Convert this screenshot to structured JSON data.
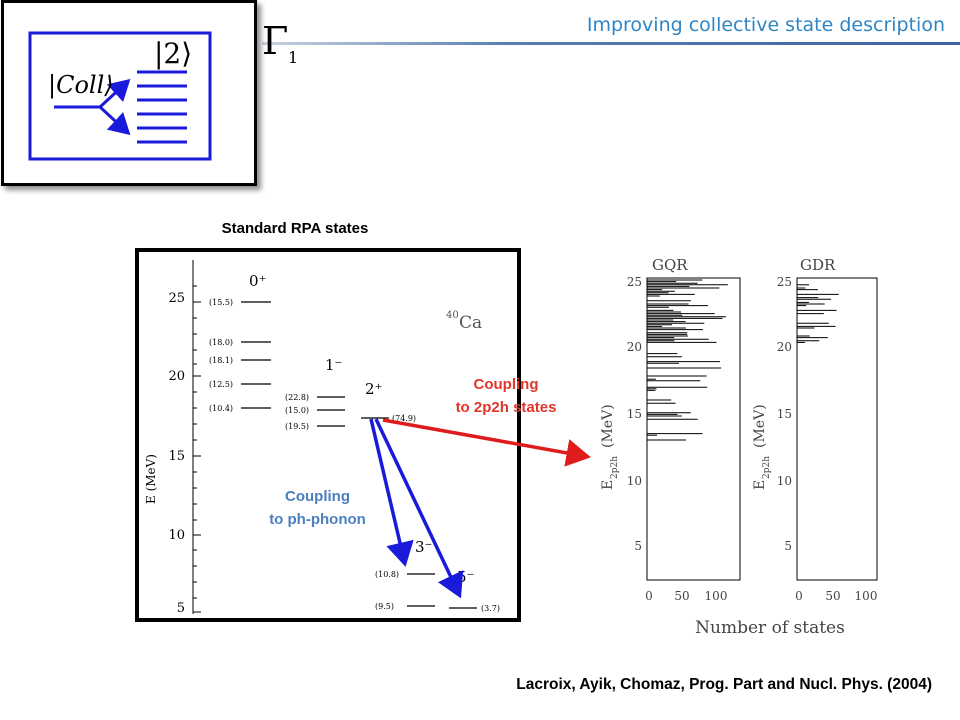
{
  "header": {
    "title": "Improving collective state description"
  },
  "inset": {
    "gamma_label": "Γ",
    "gamma_sub": "1",
    "ket_two": "|2⟩",
    "ket_coll": "|Coll⟩"
  },
  "rpa_section": {
    "label": "Standard RPA states"
  },
  "rpa_figure": {
    "nucleus_mass": "40",
    "nucleus_symbol": "Ca",
    "y_axis_label": "E (MeV)",
    "y_ticks": [
      "5",
      "10",
      "15",
      "20",
      "25"
    ],
    "columns": {
      "zero_plus": "0⁺",
      "one_minus": "1⁻",
      "two_plus": "2⁺",
      "three_minus": "3⁻",
      "five_minus": "5⁻"
    },
    "level_labels": {
      "z1": "(15.5)",
      "z2": "(18.0)",
      "z3": "(18.1)",
      "z4": "(12.5)",
      "z5": "(10.4)",
      "o1": "(22.8)",
      "o2": "(15.0)",
      "o3": "(19.5)",
      "t1": "(74.9)",
      "th1": "(10.8)",
      "th2": "(9.5)",
      "f1": "(3.7)"
    }
  },
  "annotations": {
    "coupling_2p2h_line1": "Coupling",
    "coupling_2p2h_line2": "to 2p2h states",
    "coupling_phonon_line1": "Coupling",
    "coupling_phonon_line2": "to ph-phonon"
  },
  "histograms": {
    "gqr_title": "GQR",
    "gdr_title": "GDR",
    "y_axis_label_main": "E",
    "y_axis_label_sub": "2p2h",
    "y_axis_label_unit": "(MeV)",
    "y_ticks": [
      "5",
      "10",
      "15",
      "20",
      "25"
    ],
    "x_ticks": [
      "0",
      "50",
      "100"
    ],
    "x_axis_label": "Number of states"
  },
  "citation": "Lacroix, Ayik, Chomaz, Prog. Part and Nucl. Phys. (2004)"
}
